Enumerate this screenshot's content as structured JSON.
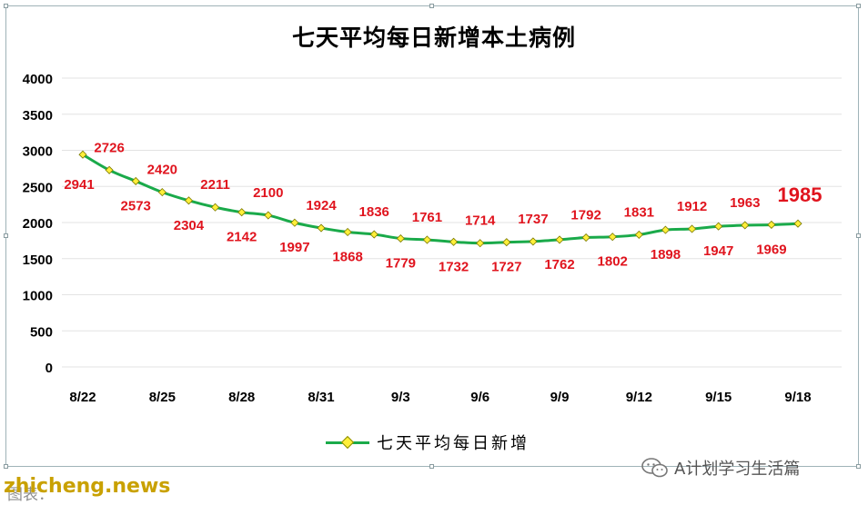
{
  "chart_data": {
    "type": "line",
    "title": "七天平均每日新增本土病例",
    "xlabel": "",
    "ylabel": "",
    "ylim": [
      0,
      4000
    ],
    "yticks": [
      0,
      500,
      1000,
      1500,
      2000,
      2500,
      3000,
      3500,
      4000
    ],
    "x": [
      "8/22",
      "8/23",
      "8/24",
      "8/25",
      "8/26",
      "8/27",
      "8/28",
      "8/29",
      "8/30",
      "8/31",
      "9/1",
      "9/2",
      "9/3",
      "9/4",
      "9/5",
      "9/6",
      "9/7",
      "9/8",
      "9/9",
      "9/10",
      "9/11",
      "9/12",
      "9/13",
      "9/14",
      "9/15",
      "9/16",
      "9/17",
      "9/18"
    ],
    "xtick_labels": [
      "8/22",
      "8/25",
      "8/28",
      "8/31",
      "9/3",
      "9/6",
      "9/9",
      "9/12",
      "9/15",
      "9/18"
    ],
    "series": [
      {
        "name": "七天平均每日新增",
        "color": "#1aaa4a",
        "marker_color": "#ffef3a",
        "values": [
          2941,
          2726,
          2573,
          2420,
          2304,
          2211,
          2142,
          2100,
          1997,
          1924,
          1868,
          1836,
          1779,
          1761,
          1732,
          1714,
          1727,
          1737,
          1762,
          1792,
          1802,
          1831,
          1898,
          1912,
          1947,
          1963,
          1969,
          1985
        ]
      }
    ],
    "label_color": "#e0141e",
    "highlight_last_label": true,
    "grid": true,
    "legend": "bottom"
  },
  "watermark_left": "zhicheng.news",
  "watermark_right": "A计划学习生活篇",
  "source_caption": "图表：",
  "icons": {
    "wechat": "wechat-icon"
  }
}
